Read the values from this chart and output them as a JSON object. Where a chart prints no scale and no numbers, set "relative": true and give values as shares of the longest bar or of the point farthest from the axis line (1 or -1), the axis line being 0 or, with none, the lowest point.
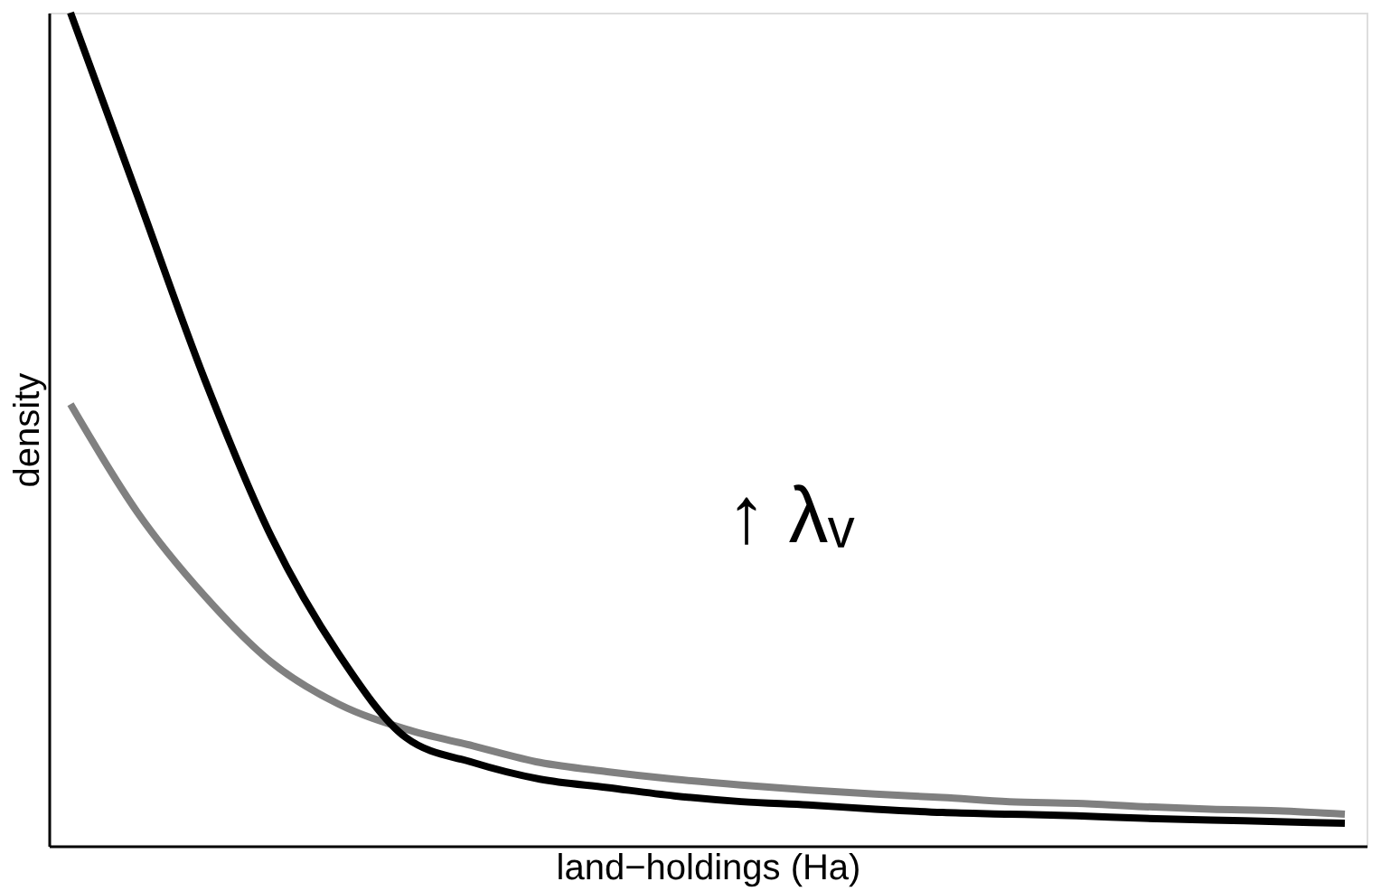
{
  "chart_data": {
    "type": "line",
    "relative": true,
    "xlabel": "land−holdings (Ha)",
    "ylabel": "density",
    "annotations": [
      "↑ λᵥ"
    ],
    "categories": [
      null,
      null,
      null,
      null,
      null,
      null,
      null,
      null,
      null,
      null,
      null,
      null,
      null,
      null,
      null,
      null,
      null,
      null,
      null,
      null
    ],
    "series": [
      {
        "color": "#000000",
        "values": [
          1,
          0.78,
          0.56,
          0.37,
          0.23,
          0.13,
          0.1,
          0.08,
          0.07,
          0.06,
          0.053,
          0.049,
          0.044,
          0.04,
          0.038,
          0.036,
          0.033,
          0.031,
          0.029,
          0.027
        ]
      },
      {
        "color": "#808080",
        "values": [
          0.53,
          0.4,
          0.3,
          0.22,
          0.17,
          0.14,
          0.12,
          0.1,
          0.089,
          0.08,
          0.073,
          0.067,
          0.062,
          0.058,
          0.053,
          0.051,
          0.047,
          0.044,
          0.042,
          0.038
        ]
      }
    ],
    "tick_labels": false,
    "grid": false,
    "legend": false,
    "marker": "none",
    "line_style": "solid"
  }
}
